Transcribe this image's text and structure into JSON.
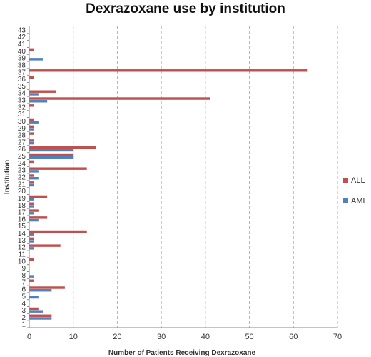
{
  "chart_data": {
    "type": "bar",
    "orientation": "horizontal",
    "title": "Dexrazoxane use by institution",
    "xlabel": "Number of Patients Receiving Dexrazoxane",
    "ylabel": "Institution",
    "xlim": [
      0,
      70
    ],
    "xticks": [
      0,
      10,
      20,
      30,
      40,
      50,
      60,
      70
    ],
    "grid": "vertical dashed",
    "legend_position": "right",
    "categories": [
      "1",
      "2",
      "3",
      "4",
      "5",
      "6",
      "7",
      "8",
      "9",
      "10",
      "11",
      "12",
      "13",
      "14",
      "15",
      "16",
      "17",
      "18",
      "19",
      "20",
      "21",
      "22",
      "23",
      "24",
      "25",
      "26",
      "27",
      "28",
      "29",
      "30",
      "31",
      "32",
      "33",
      "34",
      "35",
      "36",
      "37",
      "38",
      "39",
      "40",
      "41",
      "42",
      "43"
    ],
    "series": [
      {
        "name": "ALL",
        "color": "#c0504d",
        "values": [
          0,
          5,
          2,
          0,
          0,
          8,
          1,
          0,
          0,
          1,
          0,
          7,
          1,
          13,
          0,
          4,
          2,
          1,
          4,
          0,
          1,
          1,
          13,
          1,
          10,
          15,
          1,
          1,
          1,
          1,
          0,
          1,
          41,
          6,
          0,
          1,
          63,
          0,
          0,
          1,
          0,
          0,
          0
        ]
      },
      {
        "name": "AML",
        "color": "#4f81bd",
        "values": [
          0,
          5,
          3,
          0,
          2,
          5,
          0,
          1,
          0,
          0,
          0,
          1,
          1,
          1,
          0,
          2,
          1,
          1,
          1,
          0,
          1,
          2,
          2,
          0,
          10,
          10,
          1,
          0,
          1,
          2,
          0,
          0,
          4,
          2,
          0,
          0,
          0,
          0,
          3,
          0,
          0,
          0,
          0
        ]
      }
    ]
  }
}
